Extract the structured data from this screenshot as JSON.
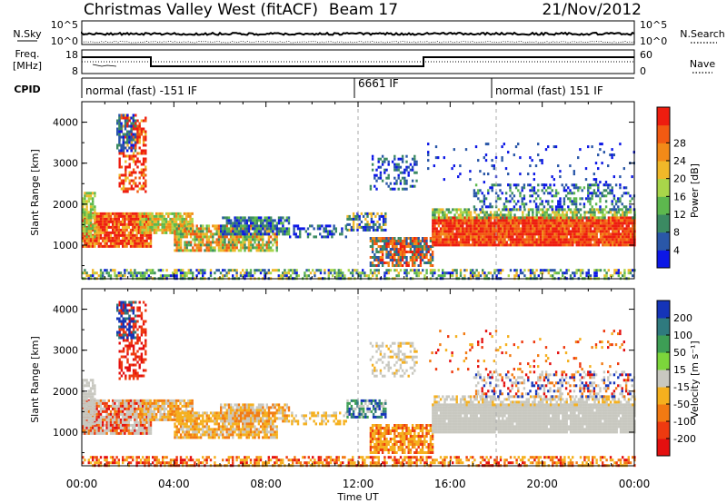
{
  "header": {
    "station": "Christmas Valley West (fitACF)",
    "beam": "Beam 17",
    "date": "21/Nov/2012"
  },
  "status_panels": {
    "nsky_label": "N.Sky",
    "nsky_ticks": [
      "10^5",
      "10^0"
    ],
    "nsearch_label": "N.Search",
    "nsearch_ticks": [
      "10^5",
      "10^0"
    ],
    "freq_label_1": "Freq.",
    "freq_label_2": "[MHz]",
    "freq_ticks": [
      "18",
      "8"
    ],
    "nave_label": "Nave",
    "nave_ticks": [
      "60",
      "0"
    ],
    "cpid_label": "CPID",
    "cpid_segments": [
      "normal (fast) -151 IF",
      "6661 IF",
      "normal (fast) 151 IF"
    ]
  },
  "chart_data": [
    {
      "type": "heatmap",
      "title": "",
      "xlabel": "",
      "ylabel": "Slant Range [km]",
      "x_range": [
        "00:00",
        "00:00 (+24h)"
      ],
      "ylim": [
        180,
        4500
      ],
      "y_ticks": [
        "1000",
        "2000",
        "3000",
        "4000"
      ],
      "colorbar": {
        "label": "Power [dB]",
        "ticks": [
          "4",
          "8",
          "12",
          "16",
          "20",
          "24",
          "28"
        ],
        "colors": [
          "#0c17e6",
          "#2a57a8",
          "#3b8a62",
          "#5db84e",
          "#a9d64a",
          "#f0b829",
          "#f28a18",
          "#f25a12",
          "#ee1d0f"
        ]
      }
    },
    {
      "type": "heatmap",
      "title": "",
      "xlabel": "Time UT",
      "ylabel": "Slant Range [km]",
      "x_ticks": [
        "00:00",
        "04:00",
        "08:00",
        "12:00",
        "16:00",
        "20:00",
        "00:00"
      ],
      "ylim": [
        180,
        4500
      ],
      "y_ticks": [
        "1000",
        "2000",
        "3000",
        "4000"
      ],
      "colorbar": {
        "label": "Velocity [m s⁻¹]",
        "ticks": [
          "200",
          "100",
          "50",
          "15",
          "-15",
          "-50",
          "-100",
          "-200"
        ],
        "colors": [
          "#1534b8",
          "#2f7a7e",
          "#3d9e55",
          "#7cd63b",
          "#c8c8c0",
          "#f5b01e",
          "#f27a12",
          "#ee3a10",
          "#e40f0f"
        ]
      }
    }
  ]
}
